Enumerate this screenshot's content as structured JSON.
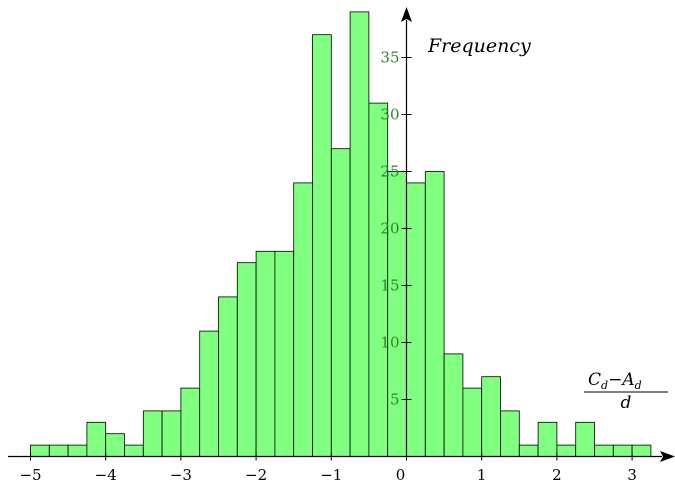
{
  "chart_data": {
    "type": "bar",
    "title": "",
    "ylabel": "Frequency",
    "xlabel": {
      "numerator_base": "C",
      "numerator_sub": "d",
      "operator": "−",
      "numerator_base2": "A",
      "numerator_sub2": "d",
      "denominator": "d"
    },
    "bin_width": 0.25,
    "x": [
      -5.0,
      -4.75,
      -4.5,
      -4.25,
      -4.0,
      -3.75,
      -3.5,
      -3.25,
      -3.0,
      -2.75,
      -2.5,
      -2.25,
      -2.0,
      -1.75,
      -1.5,
      -1.25,
      -1.0,
      -0.75,
      -0.5,
      -0.25,
      0.0,
      0.25,
      0.5,
      0.75,
      1.0,
      1.25,
      1.5,
      1.75,
      2.0,
      2.25,
      2.5,
      2.75,
      3.0
    ],
    "values": [
      1,
      1,
      1,
      3,
      2,
      1,
      4,
      4,
      6,
      11,
      14,
      17,
      18,
      18,
      24,
      37,
      27,
      39,
      31,
      25,
      24,
      25,
      9,
      6,
      7,
      4,
      1,
      3,
      1,
      3,
      1,
      1,
      1
    ],
    "xlim": [
      -5.3,
      3.45
    ],
    "ylim": [
      0,
      40
    ],
    "xticks": [
      -5,
      -4,
      -3,
      -2,
      -1,
      0,
      1,
      2,
      3
    ],
    "xtick_labels": [
      "−5",
      "−4",
      "−3",
      "−2",
      "−1",
      "0",
      "1",
      "2",
      "3"
    ],
    "yticks": [
      5,
      10,
      15,
      20,
      25,
      30,
      35
    ],
    "ytick_labels": [
      "5",
      "10",
      "15",
      "20",
      "25",
      "30",
      "35"
    ],
    "grid": false,
    "bar_color": "#80ff80",
    "edge_color": "#000000",
    "ytick_color": "#2a8a2a"
  }
}
